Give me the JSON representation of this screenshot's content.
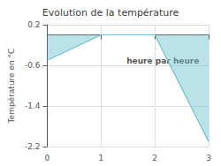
{
  "chart_data": {
    "type": "line",
    "title": "Evolution de la température",
    "ylabel": "Température en °C",
    "x": [
      0,
      1,
      2,
      3
    ],
    "values": [
      -0.5,
      0.0,
      0.0,
      -2.1
    ],
    "color": "#6bbfcf",
    "xlim": [
      0,
      3
    ],
    "ylim": [
      -2.2,
      0.2
    ],
    "xticks": [
      0,
      1,
      2,
      3
    ],
    "yticks": [
      0.2,
      -0.6,
      -1.4,
      -2.2
    ],
    "grid": true,
    "annotations": [
      {
        "text": "heure par heure",
        "x": 2.15,
        "y": -0.52
      }
    ]
  }
}
